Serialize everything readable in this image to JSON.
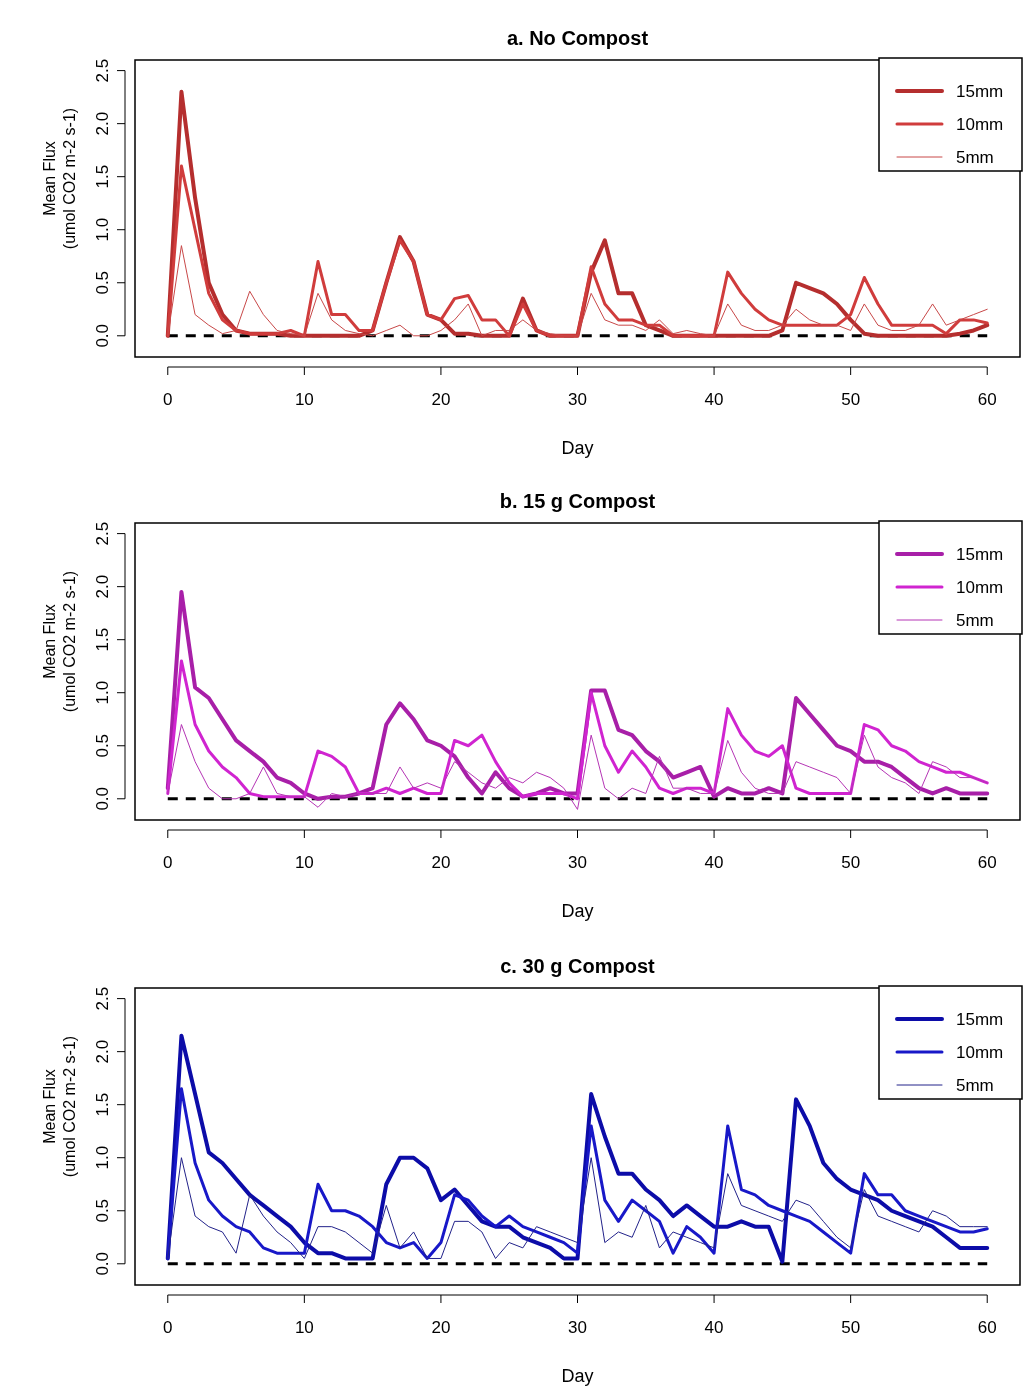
{
  "chart_data": [
    {
      "type": "line",
      "title": "a. No Compost",
      "xlabel": "Day",
      "ylabel": "Mean Flux\n(umol CO2 m-2 s-1)",
      "x": [
        0,
        1,
        2,
        3,
        4,
        5,
        6,
        7,
        8,
        9,
        10,
        11,
        12,
        13,
        14,
        15,
        16,
        17,
        18,
        19,
        20,
        21,
        22,
        23,
        24,
        25,
        26,
        27,
        28,
        29,
        30,
        31,
        32,
        33,
        34,
        35,
        36,
        37,
        38,
        39,
        40,
        41,
        42,
        43,
        44,
        45,
        46,
        47,
        48,
        49,
        50,
        51,
        52,
        53,
        54,
        55,
        56,
        57,
        58,
        59,
        60
      ],
      "xlim": [
        -2.4,
        62.4
      ],
      "xticks": [
        0,
        10,
        20,
        30,
        40,
        50,
        60
      ],
      "ylim": [
        -0.2,
        2.6
      ],
      "yticks": [
        {
          "value": 0,
          "label": "0.0"
        },
        {
          "value": 0.5,
          "label": "0.5"
        },
        {
          "value": 1,
          "label": "1.0"
        },
        {
          "value": 1.5,
          "label": "1.5"
        },
        {
          "value": 2,
          "label": "2.0"
        },
        {
          "value": 2.5,
          "label": "2.5"
        }
      ],
      "grid": false,
      "legend": "top right",
      "marker": "none",
      "line_style": "solid",
      "ref_lines": [
        {
          "axis": "y",
          "value": 0,
          "color": "#000000",
          "line_style": "dashed"
        }
      ],
      "series": [
        {
          "name": "15mm",
          "color": "#b52e2e",
          "values": [
            0,
            2.3,
            1.3,
            0.5,
            0.2,
            0.05,
            0.02,
            0.02,
            0.02,
            0,
            0,
            0,
            0,
            0,
            0,
            0.05,
            0.5,
            0.93,
            0.7,
            0.2,
            0.15,
            0.02,
            0.02,
            0,
            0,
            0,
            0.35,
            0.05,
            0,
            0,
            0,
            0.6,
            0.9,
            0.4,
            0.4,
            0.1,
            0.05,
            0,
            0,
            0,
            0,
            0,
            0,
            0,
            0,
            0.05,
            0.5,
            0.45,
            0.4,
            0.3,
            0.15,
            0.02,
            0,
            0,
            0,
            0,
            0,
            0,
            0.02,
            0.05,
            0.1
          ]
        },
        {
          "name": "10mm",
          "color": "#d03c3c",
          "values": [
            0,
            1.6,
            1.0,
            0.4,
            0.15,
            0.05,
            0.02,
            0.02,
            0.02,
            0.05,
            0,
            0.7,
            0.2,
            0.2,
            0.05,
            0.05,
            0.5,
            0.9,
            0.7,
            0.2,
            0.15,
            0.35,
            0.38,
            0.15,
            0.15,
            0,
            0.3,
            0.05,
            0,
            0,
            0,
            0.65,
            0.3,
            0.15,
            0.15,
            0.1,
            0.1,
            0,
            0,
            0,
            0,
            0.6,
            0.4,
            0.25,
            0.15,
            0.1,
            0.1,
            0.1,
            0.1,
            0.1,
            0.2,
            0.55,
            0.3,
            0.1,
            0.1,
            0.1,
            0.1,
            0.02,
            0.15,
            0.15,
            0.12
          ]
        },
        {
          "name": "5mm",
          "color": "#c84848",
          "values": [
            0,
            0.85,
            0.2,
            0.1,
            0.02,
            0.05,
            0.42,
            0.2,
            0.05,
            0.02,
            0,
            0.4,
            0.15,
            0.05,
            0.02,
            0,
            0.05,
            0.1,
            0,
            0,
            0.05,
            0.15,
            0.3,
            0,
            0.05,
            0.05,
            0.15,
            0.05,
            0.02,
            0,
            0,
            0.4,
            0.15,
            0.1,
            0.1,
            0.05,
            0.15,
            0.02,
            0.05,
            0.02,
            0,
            0.3,
            0.1,
            0.05,
            0.05,
            0.1,
            0.25,
            0.15,
            0.1,
            0.1,
            0.05,
            0.3,
            0.1,
            0.05,
            0.05,
            0.1,
            0.3,
            0.1,
            0.15,
            0.2,
            0.25
          ]
        }
      ]
    },
    {
      "type": "line",
      "title": "b. 15 g Compost",
      "xlabel": "Day",
      "ylabel": "Mean Flux\n(umol CO2 m-2 s-1)",
      "x": [
        0,
        1,
        2,
        3,
        4,
        5,
        6,
        7,
        8,
        9,
        10,
        11,
        12,
        13,
        14,
        15,
        16,
        17,
        18,
        19,
        20,
        21,
        22,
        23,
        24,
        25,
        26,
        27,
        28,
        29,
        30,
        31,
        32,
        33,
        34,
        35,
        36,
        37,
        38,
        39,
        40,
        41,
        42,
        43,
        44,
        45,
        46,
        47,
        48,
        49,
        50,
        51,
        52,
        53,
        54,
        55,
        56,
        57,
        58,
        59,
        60
      ],
      "xlim": [
        -2.4,
        62.4
      ],
      "xticks": [
        0,
        10,
        20,
        30,
        40,
        50,
        60
      ],
      "ylim": [
        -0.2,
        2.6
      ],
      "yticks": [
        {
          "value": 0,
          "label": "0.0"
        },
        {
          "value": 0.5,
          "label": "0.5"
        },
        {
          "value": 1,
          "label": "1.0"
        },
        {
          "value": 1.5,
          "label": "1.5"
        },
        {
          "value": 2,
          "label": "2.0"
        },
        {
          "value": 2.5,
          "label": "2.5"
        }
      ],
      "grid": false,
      "legend": "top right",
      "marker": "none",
      "line_style": "solid",
      "ref_lines": [
        {
          "axis": "y",
          "value": 0,
          "color": "#000000",
          "line_style": "dashed"
        }
      ],
      "series": [
        {
          "name": "15mm",
          "color": "#a81fa8",
          "values": [
            0.1,
            1.95,
            1.05,
            0.95,
            0.75,
            0.55,
            0.45,
            0.35,
            0.2,
            0.15,
            0.05,
            0,
            0.02,
            0.02,
            0.05,
            0.1,
            0.7,
            0.9,
            0.75,
            0.55,
            0.5,
            0.4,
            0.2,
            0.05,
            0.25,
            0.1,
            0.02,
            0.05,
            0.1,
            0.05,
            0.05,
            1.02,
            1.02,
            0.65,
            0.6,
            0.45,
            0.35,
            0.2,
            0.25,
            0.3,
            0.02,
            0.1,
            0.05,
            0.05,
            0.1,
            0.05,
            0.95,
            0.8,
            0.65,
            0.5,
            0.45,
            0.35,
            0.35,
            0.3,
            0.2,
            0.1,
            0.05,
            0.1,
            0.05,
            0.05,
            0.05
          ]
        },
        {
          "name": "10mm",
          "color": "#d024d0",
          "values": [
            0.05,
            1.3,
            0.7,
            0.45,
            0.3,
            0.2,
            0.05,
            0.02,
            0.02,
            0.02,
            0.02,
            0.45,
            0.4,
            0.3,
            0.05,
            0.05,
            0.1,
            0.05,
            0.1,
            0.05,
            0.05,
            0.55,
            0.5,
            0.6,
            0.35,
            0.15,
            0.02,
            0.05,
            0.05,
            0.05,
            0,
            1.0,
            0.5,
            0.25,
            0.45,
            0.3,
            0.1,
            0.05,
            0.1,
            0.1,
            0.05,
            0.85,
            0.6,
            0.45,
            0.4,
            0.5,
            0.1,
            0.05,
            0.05,
            0.05,
            0.05,
            0.7,
            0.65,
            0.5,
            0.45,
            0.35,
            0.3,
            0.25,
            0.25,
            0.2,
            0.15
          ]
        },
        {
          "name": "5mm",
          "color": "#b535b5",
          "values": [
            0.05,
            0.7,
            0.35,
            0.1,
            0,
            0,
            0.05,
            0.3,
            0.05,
            0.02,
            0.02,
            -0.08,
            0.05,
            0.02,
            0.05,
            0.05,
            0.05,
            0.3,
            0.1,
            0.15,
            0.1,
            0.35,
            0.25,
            0.15,
            0.1,
            0.2,
            0.15,
            0.25,
            0.2,
            0.1,
            -0.1,
            0.6,
            0.1,
            0,
            0.1,
            0.05,
            0.4,
            0.1,
            0.1,
            0.05,
            0.05,
            0.55,
            0.25,
            0.1,
            0.05,
            0.05,
            0.35,
            0.3,
            0.25,
            0.2,
            0.05,
            0.6,
            0.3,
            0.2,
            0.15,
            0.05,
            0.35,
            0.3,
            0.2,
            0.2,
            0.15
          ]
        }
      ]
    },
    {
      "type": "line",
      "title": "c. 30 g Compost",
      "xlabel": "Day",
      "ylabel": "Mean Flux\n(umol CO2 m-2 s-1)",
      "x": [
        0,
        1,
        2,
        3,
        4,
        5,
        6,
        7,
        8,
        9,
        10,
        11,
        12,
        13,
        14,
        15,
        16,
        17,
        18,
        19,
        20,
        21,
        22,
        23,
        24,
        25,
        26,
        27,
        28,
        29,
        30,
        31,
        32,
        33,
        34,
        35,
        36,
        37,
        38,
        39,
        40,
        41,
        42,
        43,
        44,
        45,
        46,
        47,
        48,
        49,
        50,
        51,
        52,
        53,
        54,
        55,
        56,
        57,
        58,
        59,
        60
      ],
      "xlim": [
        -2.4,
        62.4
      ],
      "xticks": [
        0,
        10,
        20,
        30,
        40,
        50,
        60
      ],
      "ylim": [
        -0.2,
        2.6
      ],
      "yticks": [
        {
          "value": 0,
          "label": "0.0"
        },
        {
          "value": 0.5,
          "label": "0.5"
        },
        {
          "value": 1,
          "label": "1.0"
        },
        {
          "value": 1.5,
          "label": "1.5"
        },
        {
          "value": 2,
          "label": "2.0"
        },
        {
          "value": 2.5,
          "label": "2.5"
        }
      ],
      "grid": false,
      "legend": "top right",
      "marker": "none",
      "line_style": "solid",
      "ref_lines": [
        {
          "axis": "y",
          "value": 0,
          "color": "#000000",
          "line_style": "dashed"
        }
      ],
      "series": [
        {
          "name": "15mm",
          "color": "#0c0ca8",
          "values": [
            0.05,
            2.15,
            1.6,
            1.05,
            0.95,
            0.8,
            0.65,
            0.55,
            0.45,
            0.35,
            0.2,
            0.1,
            0.1,
            0.05,
            0.05,
            0.05,
            0.75,
            1.0,
            1.0,
            0.9,
            0.6,
            0.7,
            0.55,
            0.4,
            0.35,
            0.35,
            0.25,
            0.2,
            0.15,
            0.05,
            0.05,
            1.6,
            1.2,
            0.85,
            0.85,
            0.7,
            0.6,
            0.45,
            0.55,
            0.45,
            0.35,
            0.35,
            0.4,
            0.35,
            0.35,
            0.02,
            1.55,
            1.3,
            0.95,
            0.8,
            0.7,
            0.65,
            0.6,
            0.5,
            0.45,
            0.4,
            0.35,
            0.25,
            0.15,
            0.15,
            0.15
          ]
        },
        {
          "name": "10mm",
          "color": "#1818c8",
          "values": [
            0.05,
            1.65,
            0.95,
            0.6,
            0.45,
            0.35,
            0.3,
            0.15,
            0.1,
            0.1,
            0.1,
            0.75,
            0.5,
            0.5,
            0.45,
            0.35,
            0.2,
            0.15,
            0.2,
            0.05,
            0.2,
            0.65,
            0.6,
            0.45,
            0.35,
            0.45,
            0.35,
            0.3,
            0.25,
            0.2,
            0.1,
            1.3,
            0.6,
            0.4,
            0.6,
            0.5,
            0.4,
            0.1,
            0.35,
            0.25,
            0.1,
            1.3,
            0.7,
            0.65,
            0.55,
            0.5,
            0.45,
            0.4,
            0.3,
            0.2,
            0.1,
            0.85,
            0.65,
            0.65,
            0.5,
            0.45,
            0.4,
            0.35,
            0.3,
            0.3,
            0.33
          ]
        },
        {
          "name": "5mm",
          "color": "#22228a",
          "values": [
            0.05,
            1.0,
            0.45,
            0.35,
            0.3,
            0.1,
            0.65,
            0.45,
            0.3,
            0.2,
            0.05,
            0.35,
            0.35,
            0.3,
            0.2,
            0.1,
            0.55,
            0.15,
            0.3,
            0.05,
            0.05,
            0.4,
            0.4,
            0.3,
            0.05,
            0.2,
            0.15,
            0.35,
            0.3,
            0.25,
            0.2,
            1.0,
            0.2,
            0.3,
            0.25,
            0.55,
            0.15,
            0.3,
            0.25,
            0.2,
            0.15,
            0.85,
            0.55,
            0.5,
            0.45,
            0.4,
            0.6,
            0.55,
            0.4,
            0.25,
            0.15,
            0.7,
            0.45,
            0.4,
            0.35,
            0.3,
            0.5,
            0.45,
            0.35,
            0.35,
            0.35
          ]
        }
      ]
    }
  ]
}
